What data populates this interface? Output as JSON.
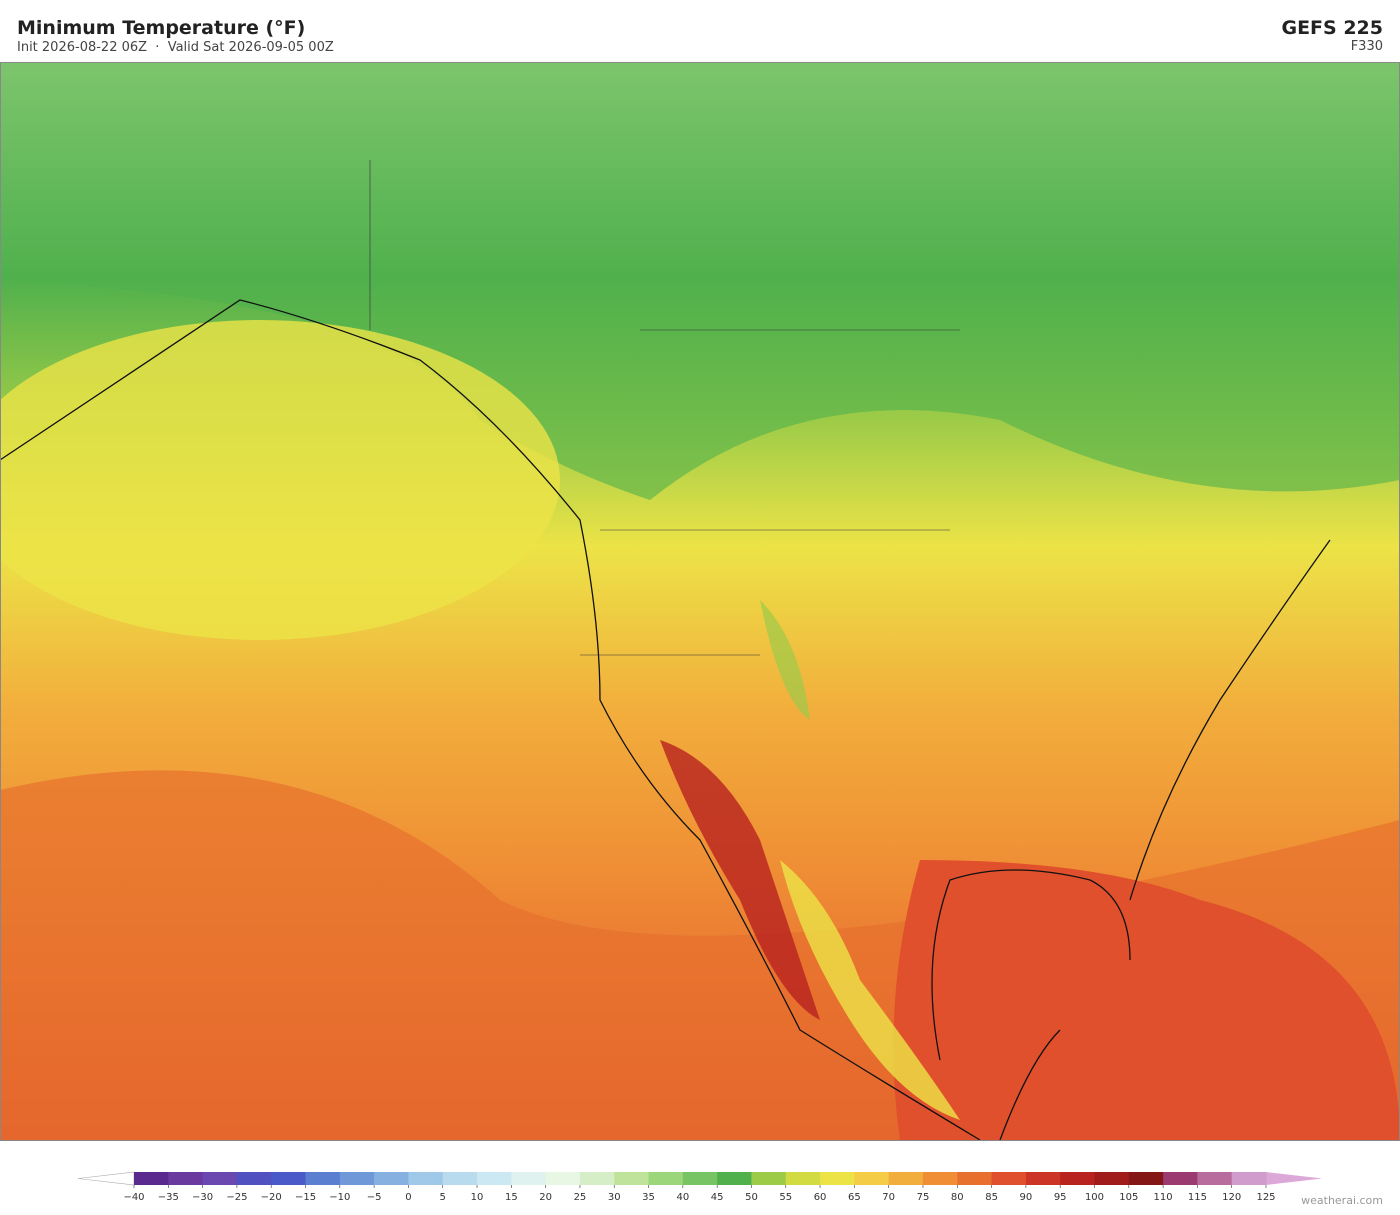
{
  "header": {
    "title": "Minimum Temperature  (°F)",
    "subtitle": "Init 2026-08-22 06Z  ·  Valid Sat 2026-09-05 00Z",
    "model": "GEFS  225",
    "forecast_hour": "F330"
  },
  "colorbar": {
    "ticks": [
      {
        "value": -40,
        "label": "−40"
      },
      {
        "value": -35,
        "label": "−35"
      },
      {
        "value": -30,
        "label": "−30"
      },
      {
        "value": -25,
        "label": "−25"
      },
      {
        "value": -20,
        "label": "−20"
      },
      {
        "value": -15,
        "label": "−15"
      },
      {
        "value": -10,
        "label": "−10"
      },
      {
        "value": -5,
        "label": "−5"
      },
      0,
      5,
      10,
      15,
      20,
      25,
      30,
      35,
      40,
      45,
      50,
      55,
      60,
      65,
      70,
      75,
      80,
      85,
      90,
      95,
      100,
      105,
      110,
      115,
      120,
      125
    ],
    "colors": [
      "#5b2a8e",
      "#6b3a9e",
      "#6a48b0",
      "#5050c0",
      "#4a5ac8",
      "#5a7ed0",
      "#6e98d8",
      "#86b0e0",
      "#a0c8e8",
      "#b8dcee",
      "#cce8f2",
      "#e0f2f0",
      "#e8f6e4",
      "#d6eec8",
      "#bfe39b",
      "#9bd77a",
      "#76c463",
      "#50b04c",
      "#9ccb48",
      "#d2dc42",
      "#ece347",
      "#f5cc45",
      "#f2ae3c",
      "#ef8e35",
      "#e7702e",
      "#e0502c",
      "#cc3426",
      "#b8221f",
      "#a01c1a",
      "#851616",
      "#9a3a70",
      "#b86c9e",
      "#d09ccc"
    ],
    "under_color": "#ffffff",
    "over_color": "#dca8d8"
  },
  "footer": {
    "credit": "weatherai.com"
  }
}
